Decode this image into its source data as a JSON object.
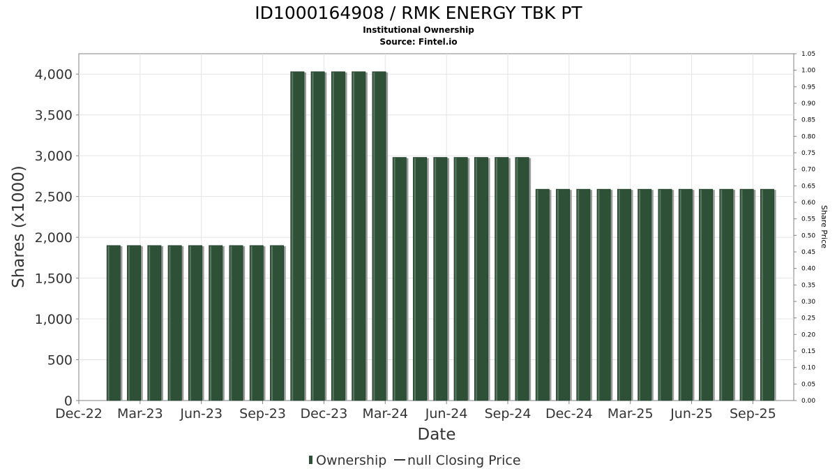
{
  "chart_data": {
    "type": "bar",
    "title": "ID1000164908 / RMK ENERGY TBK PT",
    "subtitle_line1": "Institutional Ownership",
    "subtitle_line2": "Source: Fintel.io",
    "xlabel": "Date",
    "ylabel": "Shares (x1000)",
    "y2label": "Share Price",
    "x_ticks": [
      "Dec-22",
      "Mar-23",
      "Jun-23",
      "Sep-23",
      "Dec-23",
      "Mar-24",
      "Jun-24",
      "Sep-24",
      "Dec-24",
      "Mar-25",
      "Jun-25",
      "Sep-25"
    ],
    "y_ticks": [
      "0",
      "500",
      "1,000",
      "1,500",
      "2,000",
      "2,500",
      "3,000",
      "3,500",
      "4,000"
    ],
    "y2_ticks": [
      "0.00",
      "0.05",
      "0.10",
      "0.15",
      "0.20",
      "0.25",
      "0.30",
      "0.35",
      "0.40",
      "0.45",
      "0.50",
      "0.55",
      "0.60",
      "0.65",
      "0.70",
      "0.75",
      "0.80",
      "0.85",
      "0.90",
      "0.95",
      "1.00",
      "1.05"
    ],
    "ylim": [
      0,
      4250
    ],
    "y2lim": [
      0,
      1.05
    ],
    "xlim_months": [
      0,
      35
    ],
    "grid": true,
    "legend_position": "bottom",
    "legend": [
      {
        "name": "Ownership",
        "symbol": "bar"
      },
      {
        "name": "null Closing Price",
        "symbol": "line"
      }
    ],
    "colors": {
      "bar": "#2e5037",
      "bar_shadow": "#9a9a9a",
      "grid": "#e3e3e3",
      "axis": "#808080"
    },
    "series": [
      {
        "name": "Ownership",
        "x_months": [
          1.7,
          2.7,
          3.7,
          4.7,
          5.7,
          6.7,
          7.7,
          8.7,
          9.7,
          10.7,
          11.7,
          12.7,
          13.7,
          14.7,
          15.7,
          16.7,
          17.7,
          18.7,
          19.7,
          20.7,
          21.7,
          22.7,
          23.7,
          24.7,
          25.7,
          26.7,
          27.7,
          28.7,
          29.7,
          30.7,
          31.7,
          32.7,
          33.7
        ],
        "values": [
          1900,
          1900,
          1900,
          1900,
          1900,
          1900,
          1900,
          1900,
          1900,
          4030,
          4030,
          4030,
          4030,
          4030,
          2980,
          2980,
          2980,
          2980,
          2980,
          2980,
          2980,
          2590,
          2590,
          2590,
          2590,
          2590,
          2590,
          2590,
          2590,
          2590,
          2590,
          2590,
          2590
        ]
      }
    ]
  }
}
